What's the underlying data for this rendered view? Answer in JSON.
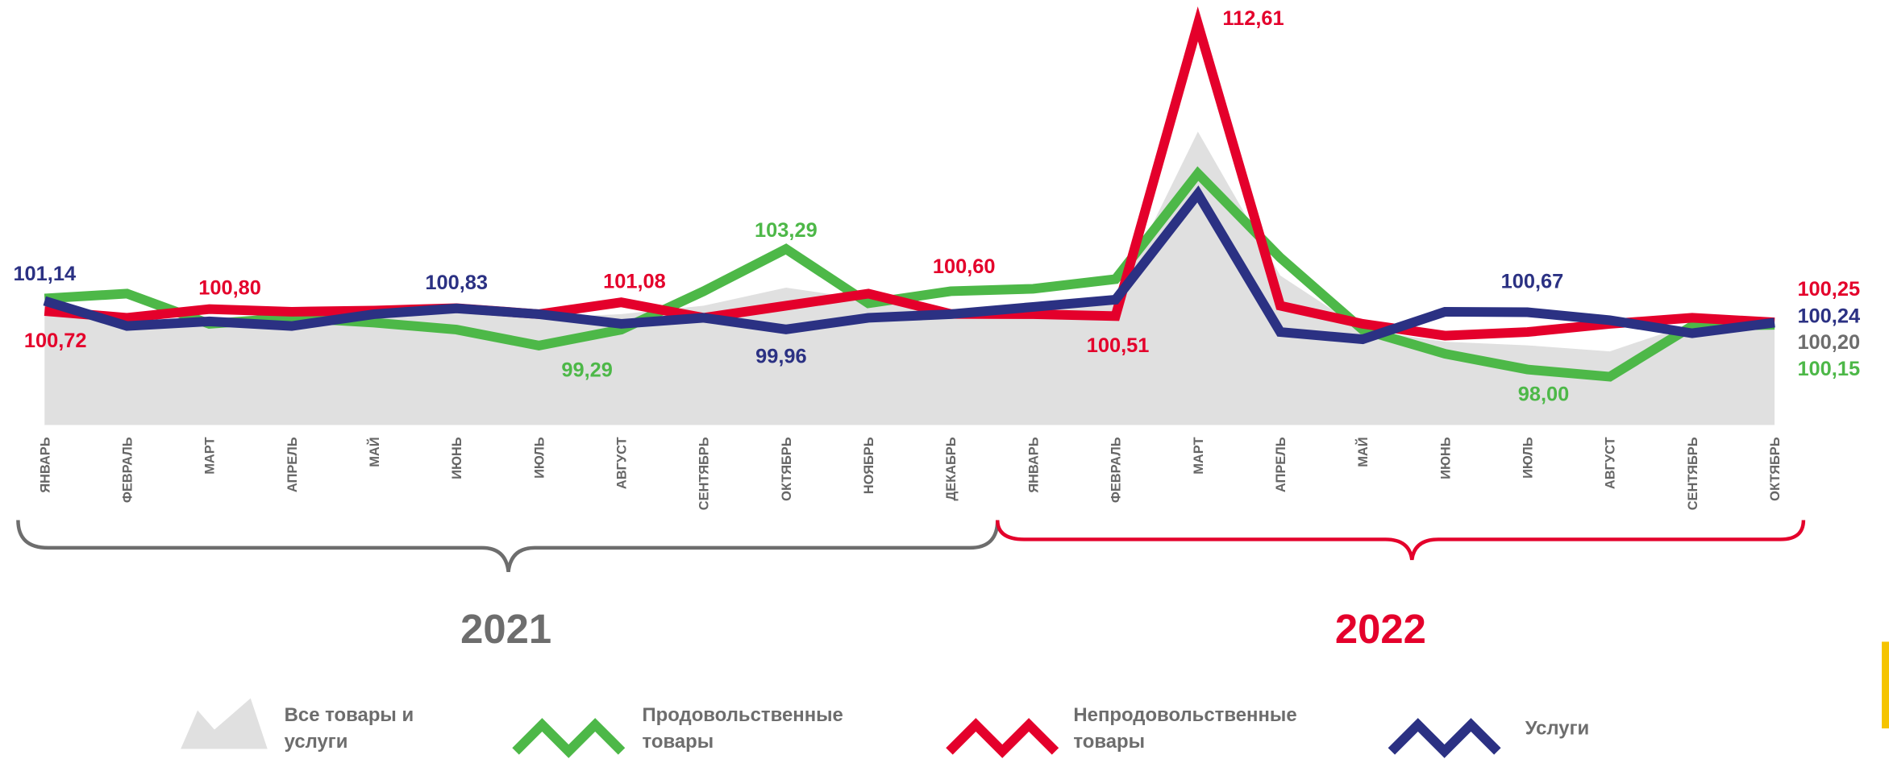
{
  "chart_data": {
    "type": "line",
    "categories": [
      "ЯНВАРЬ",
      "ФЕВРАЛЬ",
      "МАРТ",
      "АПРЕЛЬ",
      "МАЙ",
      "ИЮНЬ",
      "ИЮЛЬ",
      "АВГУСТ",
      "СЕНТЯБРЬ",
      "ОКТЯБРЬ",
      "НОЯБРЬ",
      "ДЕКАБРЬ",
      "ЯНВАРЬ",
      "ФЕВРАЛЬ",
      "МАРТ",
      "АПРЕЛЬ",
      "МАЙ",
      "ИЮНЬ",
      "ИЮЛЬ",
      "АВГУСТ",
      "СЕНТЯБРЬ",
      "ОКТЯБРЬ"
    ],
    "year_labels": [
      "2021",
      "2022"
    ],
    "ylim": [
      96,
      113.6
    ],
    "series": [
      {
        "name": "Все товары и услуги",
        "kind": "area",
        "color": "#e0e0e0",
        "label_color": "#6d6d6d",
        "values": [
          100.94,
          100.29,
          100.29,
          100.29,
          100.59,
          100.69,
          100.44,
          100.59,
          100.94,
          101.69,
          101.19,
          100.59,
          100.79,
          101.19,
          108.15,
          102.19,
          99.95,
          99.45,
          99.3,
          99.05,
          100.19,
          100.2
        ],
        "value_labels": [
          null,
          null,
          null,
          null,
          null,
          null,
          null,
          null,
          null,
          null,
          null,
          null,
          null,
          null,
          null,
          null,
          null,
          null,
          null,
          null,
          null,
          "100,20"
        ]
      },
      {
        "name": "Продовольственные товары",
        "kind": "line",
        "color": "#4db848",
        "values": [
          101.24,
          101.44,
          100.19,
          100.44,
          100.24,
          99.95,
          99.29,
          99.95,
          101.54,
          103.29,
          101.04,
          101.54,
          101.64,
          102.04,
          106.41,
          102.93,
          99.95,
          98.95,
          98.3,
          98.0,
          100.1,
          100.15
        ],
        "value_labels": [
          null,
          null,
          null,
          null,
          null,
          null,
          "99,29",
          null,
          null,
          "103,29",
          null,
          null,
          null,
          null,
          null,
          null,
          null,
          null,
          null,
          "98,00",
          null,
          "100,15"
        ]
      },
      {
        "name": "Непродовольственные товары",
        "kind": "line",
        "color": "#e4002b",
        "values": [
          100.72,
          100.44,
          100.8,
          100.69,
          100.74,
          100.84,
          100.59,
          101.08,
          100.44,
          100.94,
          101.44,
          100.6,
          100.59,
          100.51,
          112.61,
          100.94,
          100.19,
          99.7,
          99.85,
          100.19,
          100.44,
          100.25
        ],
        "value_labels": [
          "100,72",
          null,
          "100,80",
          null,
          null,
          null,
          null,
          "101,08",
          null,
          null,
          null,
          "100,60",
          null,
          "100,51",
          "112,61",
          null,
          null,
          null,
          null,
          null,
          null,
          "100,25"
        ]
      },
      {
        "name": "Услуги",
        "kind": "line",
        "color": "#2b3183",
        "values": [
          101.14,
          100.1,
          100.29,
          100.1,
          100.59,
          100.83,
          100.59,
          100.19,
          100.44,
          99.96,
          100.44,
          100.59,
          100.89,
          101.19,
          105.57,
          99.85,
          99.55,
          100.69,
          100.67,
          100.34,
          99.8,
          100.24
        ],
        "value_labels": [
          "101,14",
          null,
          null,
          null,
          null,
          "100,83",
          null,
          null,
          null,
          "99,96",
          null,
          null,
          null,
          null,
          null,
          null,
          null,
          null,
          "100,67",
          null,
          null,
          "100,24"
        ]
      }
    ]
  }
}
